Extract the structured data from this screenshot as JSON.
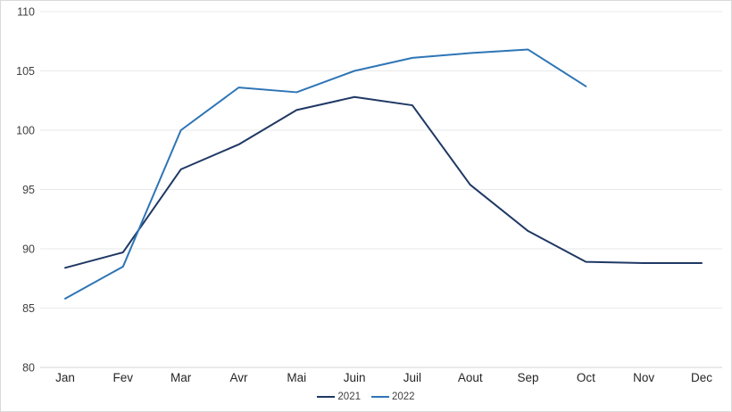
{
  "chart_data": {
    "type": "line",
    "title": "",
    "xlabel": "",
    "ylabel": "",
    "categories": [
      "Jan",
      "Fev",
      "Mar",
      "Avr",
      "Mai",
      "Juin",
      "Juil",
      "Aout",
      "Sep",
      "Oct",
      "Nov",
      "Dec"
    ],
    "series": [
      {
        "name": "2021",
        "color": "#1F3864",
        "values": [
          88.4,
          89.7,
          96.7,
          98.8,
          101.7,
          102.8,
          102.1,
          95.4,
          91.5,
          88.9,
          88.8,
          88.8
        ]
      },
      {
        "name": "2022",
        "color": "#2E75B6",
        "values": [
          85.8,
          88.5,
          100.0,
          103.6,
          103.2,
          105.0,
          106.1,
          106.5,
          106.8,
          103.7,
          null,
          null
        ]
      }
    ],
    "ylim": [
      80,
      110
    ],
    "ytick_step": 5,
    "y_ticks": [
      110,
      105,
      100,
      95,
      90,
      85,
      80
    ],
    "grid": true,
    "legend_position": "bottom-center",
    "colors": {
      "grid": "#e9e9e9",
      "axis": "#d6d6d6",
      "y_tick_text": "#404040",
      "x_tick_text": "#262626",
      "background": "#ffffff",
      "frame_border": "#d9d9d9"
    }
  }
}
